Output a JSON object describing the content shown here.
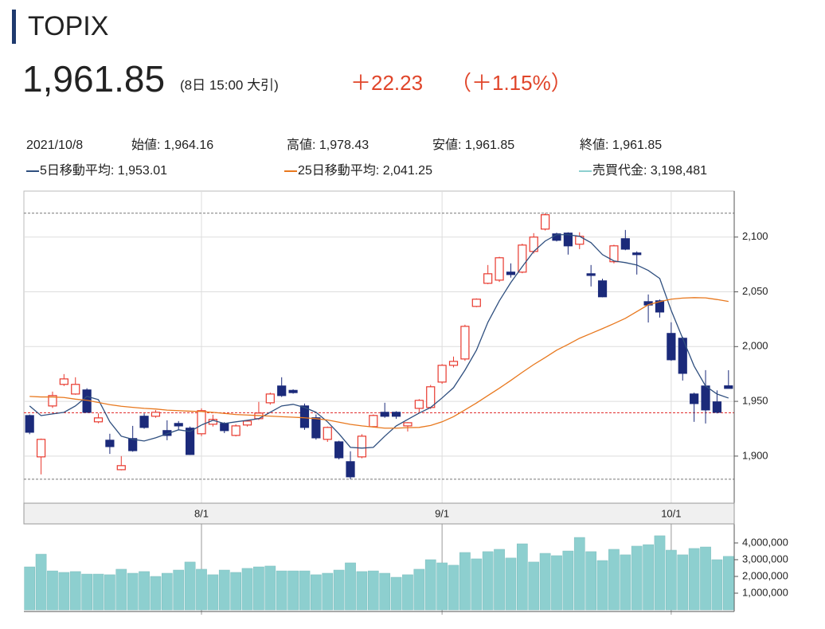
{
  "header": {
    "title": "TOPIX",
    "price": "1,961.85",
    "time": "(8日 15:00 大引)",
    "change": "＋22.23",
    "change_pct": "（＋1.15%）"
  },
  "info": {
    "date": "2021/10/8",
    "open": "始値: 1,964.16",
    "high": "高値: 1,978.43",
    "low": "安値: 1,961.85",
    "close": "終値: 1,961.85"
  },
  "chart_data": [
    {
      "type": "candlestick",
      "categories": [
        null,
        null,
        null,
        null,
        null,
        null,
        null,
        null,
        null,
        null,
        null,
        null,
        null,
        null,
        null,
        "8/1",
        null,
        null,
        null,
        null,
        null,
        null,
        null,
        null,
        null,
        null,
        null,
        null,
        null,
        null,
        null,
        null,
        null,
        null,
        null,
        null,
        "9/1",
        null,
        null,
        null,
        null,
        null,
        null,
        null,
        null,
        null,
        null,
        null,
        null,
        null,
        null,
        null,
        null,
        null,
        null,
        null,
        "10/1",
        null,
        null,
        null,
        null,
        null
      ],
      "open": [
        1937,
        1899.3,
        1945.8,
        1965.5,
        1956.7,
        1960.4,
        1931.3,
        1914.5,
        1887.6,
        1916,
        1936.4,
        1936.4,
        1923.3,
        1929.8,
        1925.5,
        1920.4,
        1929.1,
        1929.8,
        1918.9,
        1928.4,
        1934.2,
        1948.7,
        1964,
        1960,
        1945.8,
        1935,
        1915.3,
        1913,
        1894.9,
        1899.3,
        1926.9,
        1940,
        1940,
        1927.6,
        1943.6,
        1944.4,
        1967.6,
        1982.9,
        1988.7,
        2036.7,
        2057.8,
        2060.7,
        2068,
        2068,
        2086.9,
        2107.3,
        2102.9,
        2103.6,
        2093.5,
        2066.5,
        2060,
        2077.5,
        2098.5,
        2085.5,
        2041,
        2041.8,
        2012,
        2007.6,
        1956.7,
        1964,
        1949.5,
        1964.16
      ],
      "high": [
        1938,
        1916,
        1958.9,
        1974.9,
        1972,
        1962,
        1939,
        1920.4,
        1900,
        1927.6,
        1939,
        1942,
        1932.7,
        1932,
        1927,
        1943.6,
        1937.8,
        1931,
        1929,
        1933,
        1949.5,
        1958,
        1972,
        1961,
        1948,
        1938,
        1927,
        1914,
        1904.4,
        1920,
        1938,
        1948.7,
        1941,
        1931,
        1952,
        1965,
        1984,
        1990.9,
        2020,
        2044,
        2074.5,
        2082,
        2076,
        2094,
        2103.6,
        2121.8,
        2104,
        2104.4,
        2104.4,
        2074.5,
        2062,
        2093,
        2106.5,
        2087,
        2047.6,
        2043,
        2022.2,
        2009,
        1958,
        1978.5,
        1960,
        1978.43
      ],
      "low": [
        1920,
        1883.3,
        1944,
        1964,
        1956,
        1940,
        1930,
        1902,
        1887,
        1904,
        1925,
        1935,
        1914.5,
        1924,
        1901,
        1918.2,
        1927,
        1921,
        1918,
        1927,
        1933,
        1947,
        1954,
        1957,
        1924,
        1915,
        1913,
        1897,
        1878.9,
        1898,
        1926,
        1935,
        1934,
        1922.5,
        1940,
        1943,
        1966,
        1981,
        1987,
        2036,
        2057,
        2059,
        2063,
        2067,
        2085,
        2106,
        2096,
        2084,
        2089,
        2054.9,
        2045,
        2076,
        2088,
        2065.8,
        2022,
        2026.5,
        1987,
        1969,
        1931.3,
        1929.8,
        1939,
        1961.85
      ],
      "close": [
        1921.8,
        1915.3,
        1955.3,
        1970.5,
        1965.5,
        1940,
        1934.9,
        1908.7,
        1891.3,
        1905,
        1926.2,
        1940,
        1918.9,
        1927.6,
        1901.5,
        1941.5,
        1933.5,
        1923.3,
        1927.6,
        1932,
        1939.3,
        1956.7,
        1955.3,
        1958,
        1926.2,
        1916.7,
        1926.2,
        1898.5,
        1881.1,
        1918.2,
        1937.1,
        1936.4,
        1936.4,
        1930.5,
        1950.9,
        1963.3,
        1982.9,
        1986.5,
        2018.5,
        2043.3,
        2066.5,
        2081.1,
        2065.8,
        2092.7,
        2100,
        2120.4,
        2097.1,
        2092,
        2100.7,
        2065,
        2045.5,
        2092,
        2089,
        2084,
        2038,
        2031.6,
        1988,
        1975.6,
        1948,
        1942.2,
        1940,
        1961.85
      ],
      "up_color": "#e8392e",
      "down_color": "#1b2a7a",
      "series": [
        {
          "name": "5日移動平均: 1,953.01",
          "color": "#2f4f7f",
          "values": [
            1945.8,
            1937,
            1938.5,
            1940,
            1945.8,
            1954.5,
            1951.6,
            1931.3,
            1918.2,
            1915.3,
            1913.8,
            1916.7,
            1920.4,
            1924,
            1922.5,
            1928.4,
            1932.7,
            1929.8,
            1931.3,
            1932.7,
            1934.2,
            1940,
            1945.8,
            1947.3,
            1944.4,
            1940,
            1931.3,
            1920.4,
            1908,
            1907.3,
            1908,
            1918.2,
            1927.6,
            1933.5,
            1939.3,
            1944.4,
            1953.1,
            1962.5,
            1978.5,
            1996.7,
            2022.2,
            2041.8,
            2058.5,
            2073,
            2086.9,
            2096.4,
            2102.2,
            2102.2,
            2100.7,
            2094.9,
            2084,
            2078.2,
            2076.7,
            2074.5,
            2069.5,
            2062.2,
            2033,
            2007.6,
            1982.2,
            1964,
            1956.7,
            1953.01
          ]
        },
        {
          "name": "25日移動平均: 2,041.25",
          "color": "#e8781e",
          "values": [
            1954.5,
            1954,
            1954,
            1953.5,
            1952,
            1951,
            1949,
            1947,
            1945.5,
            1944.5,
            1943.6,
            1943,
            1942,
            1941.5,
            1941,
            1940.7,
            1940,
            1939,
            1938,
            1937.5,
            1937,
            1936.5,
            1936,
            1935.5,
            1935,
            1934.2,
            1933,
            1931,
            1929,
            1927.6,
            1926.5,
            1925.5,
            1925.5,
            1926,
            1926.2,
            1928,
            1931.3,
            1936,
            1942.2,
            1948.5,
            1955.3,
            1962,
            1969.1,
            1976.5,
            1983.6,
            1990,
            1996.7,
            2002,
            2007.6,
            2012,
            2016.4,
            2021,
            2025.8,
            2032,
            2038.2,
            2041,
            2043.3,
            2044.3,
            2044.7,
            2044.5,
            2043,
            2041.25
          ]
        }
      ],
      "ylim": [
        1857,
        2142
      ],
      "yticks": [
        {
          "value": 1900,
          "label": "1,900"
        },
        {
          "value": 1950,
          "label": "1,950"
        },
        {
          "value": 2000,
          "label": "2,000"
        },
        {
          "value": 2050,
          "label": "2,050"
        },
        {
          "value": 2100,
          "label": "2,100"
        }
      ],
      "reference_lines": [
        {
          "value": 2121.8,
          "color": "#777777"
        },
        {
          "value": 1939.62,
          "color": "#e02020"
        },
        {
          "value": 1878.9,
          "color": "#777777"
        }
      ],
      "grid": true
    },
    {
      "type": "bar",
      "series": [
        {
          "name": "売買代金: 3,198,481",
          "color": "#8dcfcf",
          "values": [
            2570000,
            3330000,
            2330000,
            2240000,
            2290000,
            2140000,
            2140000,
            2100000,
            2430000,
            2190000,
            2290000,
            2000000,
            2190000,
            2380000,
            2860000,
            2430000,
            2100000,
            2380000,
            2240000,
            2480000,
            2570000,
            2620000,
            2330000,
            2330000,
            2330000,
            2100000,
            2190000,
            2380000,
            2810000,
            2290000,
            2330000,
            2190000,
            1950000,
            2100000,
            2430000,
            3000000,
            2810000,
            2670000,
            3430000,
            3050000,
            3480000,
            3620000,
            3100000,
            3950000,
            2860000,
            3380000,
            3240000,
            3520000,
            4330000,
            3480000,
            2950000,
            3620000,
            3290000,
            3810000,
            3900000,
            4430000,
            3570000,
            3290000,
            3670000,
            3760000,
            3000000,
            3198481
          ]
        }
      ],
      "ylim": [
        0,
        5140000
      ],
      "yticks": [
        {
          "value": 1000000,
          "label": "1,000,000"
        },
        {
          "value": 2000000,
          "label": "2,000,000"
        },
        {
          "value": 3000000,
          "label": "3,000,000"
        },
        {
          "value": 4000000,
          "label": "4,000,000"
        }
      ]
    }
  ]
}
